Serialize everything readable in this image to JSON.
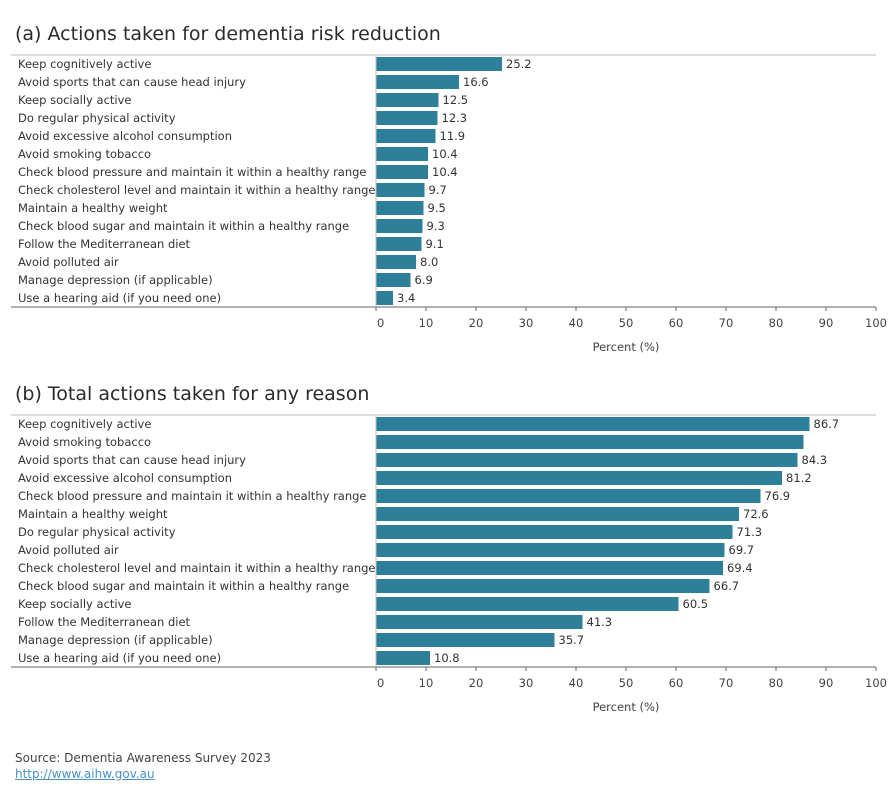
{
  "chart_data": [
    {
      "type": "bar",
      "orientation": "horizontal",
      "title": "(a) Actions taken for dementia risk reduction",
      "xlabel": "Percent (%)",
      "xlim": [
        0,
        100
      ],
      "ticks": [
        "0",
        "10",
        "20",
        "30",
        "40",
        "50",
        "60",
        "70",
        "80",
        "90",
        "100"
      ],
      "categories": [
        "Keep cognitively active",
        "Avoid sports that can cause head injury",
        "Keep socially active",
        "Do regular physical activity",
        "Avoid excessive alcohol consumption",
        "Avoid smoking tobacco",
        "Check blood pressure and maintain it within a healthy range",
        "Check cholesterol level and maintain it within a healthy range",
        "Maintain a healthy weight",
        "Check blood sugar and maintain it within a healthy range",
        "Follow the Mediterranean diet",
        "Avoid polluted air",
        "Manage depression (if applicable)",
        "Use a hearing aid (if you need one)"
      ],
      "values": [
        25.2,
        16.6,
        12.5,
        12.3,
        11.9,
        10.4,
        10.4,
        9.7,
        9.5,
        9.3,
        9.1,
        8.0,
        6.9,
        3.4
      ],
      "value_labels": [
        "25.2",
        "16.6",
        "12.5",
        "12.3",
        "11.9",
        "10.4",
        "10.4",
        "9.7",
        "9.5",
        "9.3",
        "9.1",
        "8.0",
        "6.9",
        "3.4"
      ],
      "bar_color": "#2e7f99"
    },
    {
      "type": "bar",
      "orientation": "horizontal",
      "title": "(b) Total actions taken for any reason",
      "xlabel": "Percent (%)",
      "xlim": [
        0,
        100
      ],
      "ticks": [
        "0",
        "10",
        "20",
        "30",
        "40",
        "50",
        "60",
        "70",
        "80",
        "90",
        "100"
      ],
      "categories": [
        "Keep cognitively active",
        "Avoid smoking tobacco",
        "Avoid sports that can cause head injury",
        "Avoid excessive alcohol consumption",
        "Check blood pressure and maintain it within a healthy range",
        "Maintain a healthy weight",
        "Do regular physical activity",
        "Avoid polluted air",
        "Check cholesterol level and maintain it within a healthy range",
        "Check blood sugar and maintain it within a healthy range",
        "Keep socially active",
        "Follow the Mediterranean diet",
        "Manage depression (if applicable)",
        "Use a hearing aid (if you need one)"
      ],
      "values": [
        86.7,
        85.5,
        84.3,
        81.2,
        76.9,
        72.6,
        71.3,
        69.7,
        69.4,
        66.7,
        60.5,
        41.3,
        35.7,
        10.8
      ],
      "value_labels": [
        "86.7",
        "",
        "84.3",
        "81.2",
        "76.9",
        "72.6",
        "71.3",
        "69.7",
        "69.4",
        "66.7",
        "60.5",
        "41.3",
        "35.7",
        "10.8"
      ],
      "bar_color": "#2e7f99"
    }
  ],
  "footer": {
    "source": "Source: Dementia Awareness Survey 2023",
    "link": "http://www.aihw.gov.au"
  }
}
